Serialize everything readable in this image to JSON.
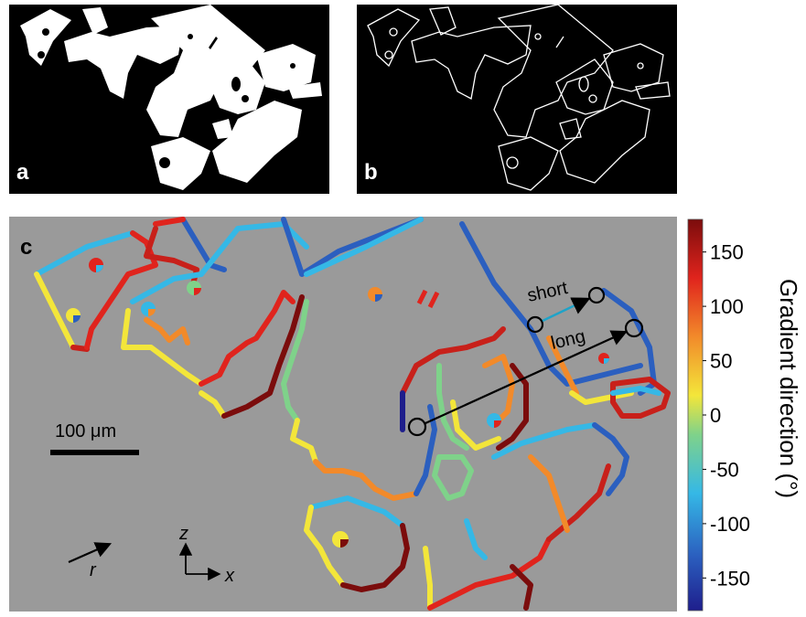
{
  "panels": {
    "a": {
      "letter": "a"
    },
    "b": {
      "letter": "b"
    },
    "c": {
      "letter": "c"
    }
  },
  "annotations": {
    "short": "short",
    "long": "long",
    "scale_bar": "100 μm",
    "r_axis": "r",
    "z_axis": "z",
    "x_axis": "x"
  },
  "colorbar": {
    "label": "Gradient direction (°)",
    "ticks": [
      "150",
      "100",
      "50",
      "0",
      "-50",
      "-100",
      "-150"
    ],
    "range": [
      -180,
      180
    ],
    "colormap": [
      "#1e1e8c",
      "#2b5fbf",
      "#35b8e6",
      "#7fd28a",
      "#f3e63a",
      "#f28a2a",
      "#e0241d",
      "#7b0c0c"
    ]
  },
  "colors": {
    "plot_background": "#9a9a9a",
    "mask_background": "#000000",
    "mask_foreground": "#ffffff",
    "annotation": "#000000",
    "short_arrow": "#1fa3c8"
  }
}
